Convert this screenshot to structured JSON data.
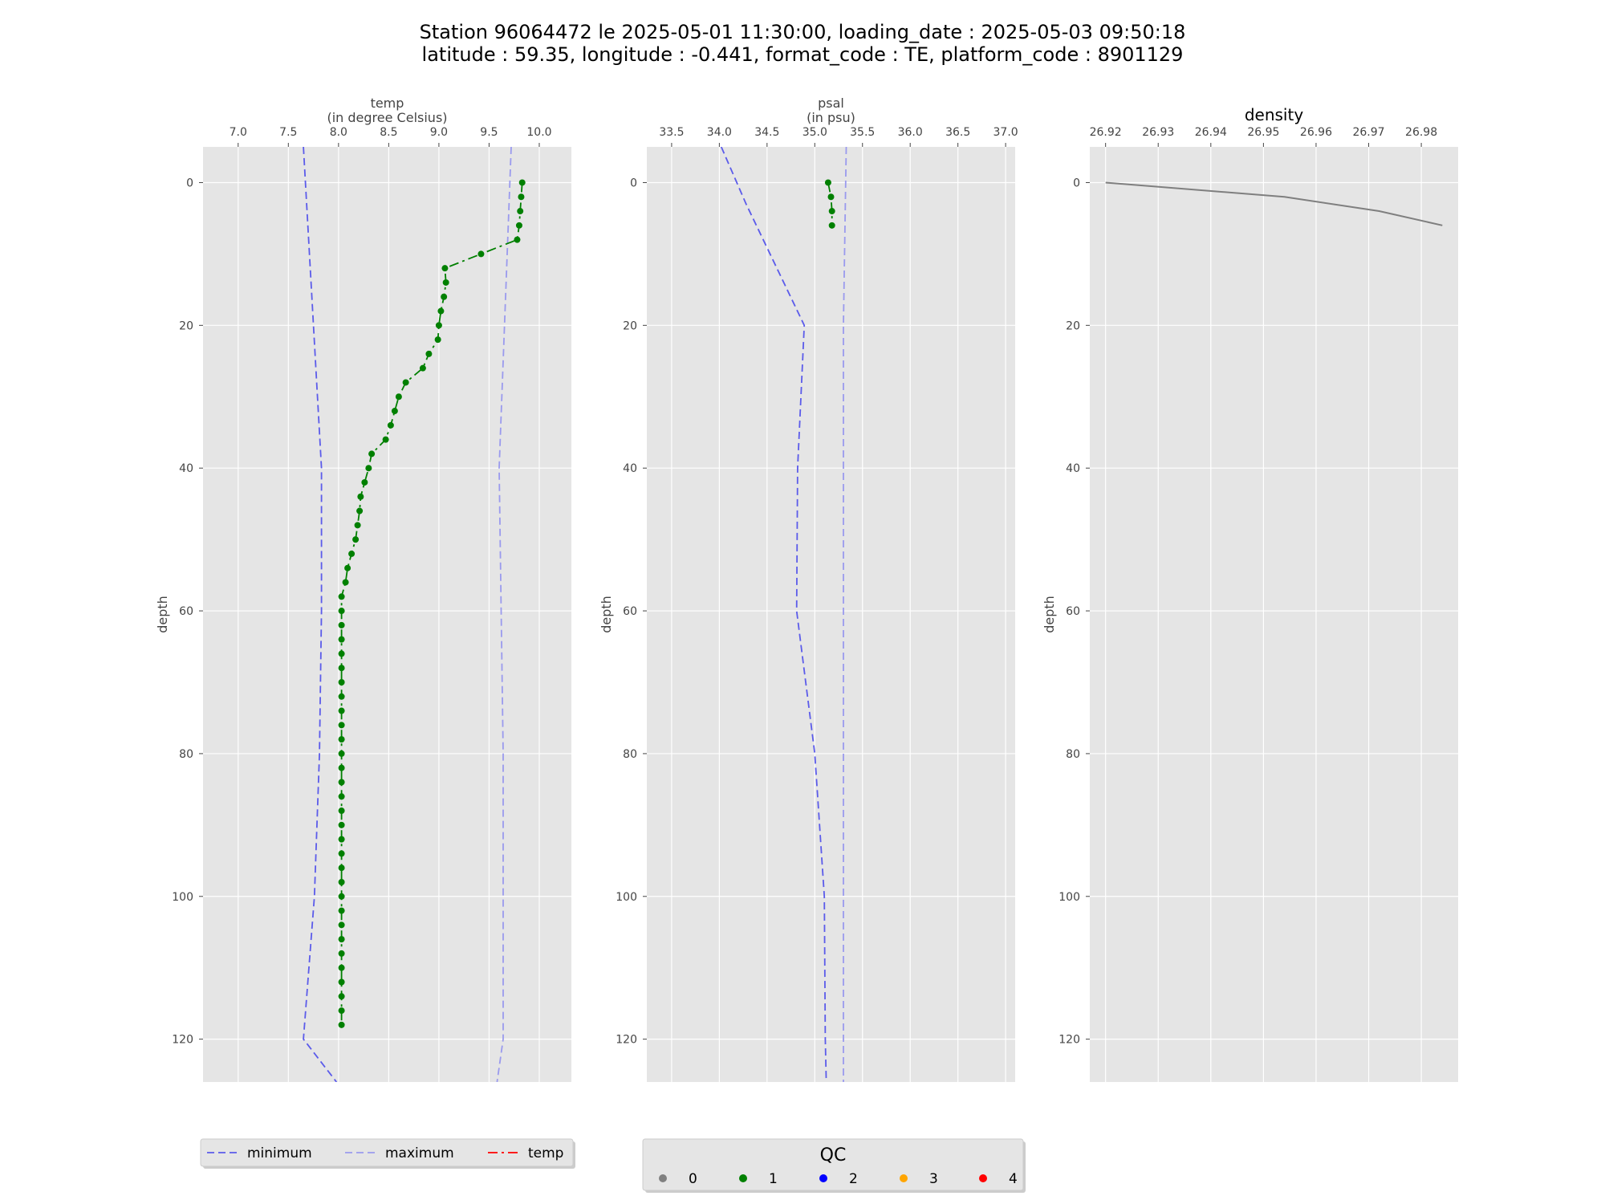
{
  "title": {
    "line1": "Station 96064472 le 2025-05-01 11:30:00, loading_date : 2025-05-03 09:50:18",
    "line2": "latitude : 59.35, longitude : -0.441, format_code : TE, platform_code : 8901129"
  },
  "colors": {
    "panel_bg": "#e5e5e5",
    "grid": "#ffffff",
    "minimum": "#5b5bea",
    "maximum": "#9a9aee",
    "measured": "#007f00",
    "density": "#7f7f7f",
    "qc_0": "#808080",
    "qc_1": "#008000",
    "qc_2": "#0000ff",
    "qc_3": "#ffa500",
    "qc_4": "#ff0000",
    "temp_legend": "#ff0000"
  },
  "chart_data": [
    {
      "type": "line",
      "xlabel_line1": "temp",
      "xlabel_line2": "(in degree Celsius)",
      "ylabel": "depth",
      "xlim": [
        6.65,
        10.32
      ],
      "ylim": [
        126,
        -5
      ],
      "y_inverted": true,
      "xticks": [
        7.0,
        7.5,
        8.0,
        8.5,
        9.0,
        9.5,
        10.0
      ],
      "xtick_labels": [
        "7.0",
        "7.5",
        "8.0",
        "8.5",
        "9.0",
        "9.5",
        "10.0"
      ],
      "yticks": [
        0,
        20,
        40,
        60,
        80,
        100,
        120
      ],
      "ytick_labels": [
        "0",
        "20",
        "40",
        "60",
        "80",
        "100",
        "120"
      ],
      "grid": true,
      "series": [
        {
          "name": "minimum",
          "style": "dashed",
          "color": "#5b5bea",
          "x": [
            7.65,
            7.83,
            7.83,
            7.81,
            7.76,
            7.65,
            7.98
          ],
          "y": [
            -5,
            40,
            60,
            80,
            100,
            120,
            126
          ]
        },
        {
          "name": "maximum",
          "style": "dashed",
          "color": "#9a9aee",
          "x": [
            9.72,
            9.6,
            9.62,
            9.64,
            9.64,
            9.64,
            9.58
          ],
          "y": [
            -5,
            40,
            60,
            80,
            100,
            120,
            126
          ]
        },
        {
          "name": "temp",
          "style": "dashdot",
          "color": "#007f00",
          "markers": "qc",
          "x": [
            9.83,
            9.82,
            9.81,
            9.8,
            9.78,
            9.42,
            9.06,
            9.07,
            9.05,
            9.02,
            9.0,
            8.99,
            8.9,
            8.84,
            8.67,
            8.6,
            8.56,
            8.52,
            8.47,
            8.33,
            8.3,
            8.26,
            8.22,
            8.21,
            8.19,
            8.17,
            8.13,
            8.09,
            8.07,
            8.03,
            8.03,
            8.03,
            8.03,
            8.03,
            8.03,
            8.03,
            8.03,
            8.03,
            8.03,
            8.03,
            8.03,
            8.03,
            8.03,
            8.03,
            8.03,
            8.03,
            8.03,
            8.03,
            8.03,
            8.03,
            8.03,
            8.03,
            8.03,
            8.03,
            8.03,
            8.03,
            8.03,
            8.03,
            8.03,
            8.03
          ],
          "y": [
            0,
            2,
            4,
            6,
            8,
            10,
            12,
            14,
            16,
            18,
            20,
            22,
            24,
            26,
            28,
            30,
            32,
            34,
            36,
            38,
            40,
            42,
            44,
            46,
            48,
            50,
            52,
            54,
            56,
            58,
            60,
            62,
            64,
            66,
            68,
            70,
            72,
            74,
            76,
            78,
            80,
            82,
            84,
            86,
            88,
            90,
            92,
            94,
            96,
            98,
            100,
            102,
            104,
            106,
            108,
            110,
            112,
            114,
            116,
            118
          ],
          "qc": 1
        }
      ]
    },
    {
      "type": "line",
      "xlabel_line1": "psal",
      "xlabel_line2": "(in psu)",
      "ylabel": "depth",
      "xlim": [
        33.24,
        37.1
      ],
      "ylim": [
        126,
        -5
      ],
      "y_inverted": true,
      "xticks": [
        33.5,
        34.0,
        34.5,
        35.0,
        35.5,
        36.0,
        36.5,
        37.0
      ],
      "xtick_labels": [
        "33.5",
        "34.0",
        "34.5",
        "35.0",
        "35.5",
        "36.0",
        "36.5",
        "37.0"
      ],
      "yticks": [
        0,
        20,
        40,
        60,
        80,
        100,
        120
      ],
      "ytick_labels": [
        "0",
        "20",
        "40",
        "60",
        "80",
        "100",
        "120"
      ],
      "grid": true,
      "series": [
        {
          "name": "minimum",
          "style": "dashed",
          "color": "#5b5bea",
          "x": [
            34.02,
            34.28,
            34.89,
            34.82,
            34.81,
            35.0,
            35.1,
            35.11,
            35.12
          ],
          "y": [
            -5,
            3,
            20,
            40,
            60,
            80,
            100,
            120,
            126
          ]
        },
        {
          "name": "maximum",
          "style": "dashed",
          "color": "#9a9aee",
          "x": [
            35.33,
            35.3,
            35.3,
            35.3,
            35.3
          ],
          "y": [
            -5,
            20,
            60,
            100,
            126
          ]
        },
        {
          "name": "psal",
          "style": "dashdot",
          "color": "#007f00",
          "markers": "qc",
          "x": [
            35.14,
            35.17,
            35.18,
            35.18
          ],
          "y": [
            0,
            2,
            4,
            6
          ],
          "qc": 1
        }
      ]
    },
    {
      "type": "line",
      "title": "density",
      "ylabel": "depth",
      "xlim": [
        26.917,
        26.987
      ],
      "ylim": [
        126,
        -5
      ],
      "y_inverted": true,
      "xticks": [
        26.92,
        26.93,
        26.94,
        26.95,
        26.96,
        26.97,
        26.98
      ],
      "xtick_labels": [
        "26.92",
        "26.93",
        "26.94",
        "26.95",
        "26.96",
        "26.97",
        "26.98"
      ],
      "yticks": [
        0,
        20,
        40,
        60,
        80,
        100,
        120
      ],
      "ytick_labels": [
        "0",
        "20",
        "40",
        "60",
        "80",
        "100",
        "120"
      ],
      "grid": true,
      "series": [
        {
          "style": "solid",
          "color": "#7f7f7f",
          "x": [
            26.92,
            26.954,
            26.972,
            26.984
          ],
          "y": [
            0,
            2,
            4,
            6
          ]
        }
      ]
    }
  ],
  "legend_left": {
    "items": [
      {
        "label": "minimum",
        "style": "dashed",
        "color": "#5b5bea"
      },
      {
        "label": "maximum",
        "style": "dashed",
        "color": "#9a9aee"
      },
      {
        "label": "temp",
        "style": "dashdot",
        "color": "#ff0000"
      }
    ]
  },
  "legend_qc": {
    "title": "QC",
    "items": [
      {
        "label": "0",
        "color": "#808080"
      },
      {
        "label": "1",
        "color": "#008000"
      },
      {
        "label": "2",
        "color": "#0000ff"
      },
      {
        "label": "3",
        "color": "#ffa500"
      },
      {
        "label": "4",
        "color": "#ff0000"
      }
    ]
  }
}
